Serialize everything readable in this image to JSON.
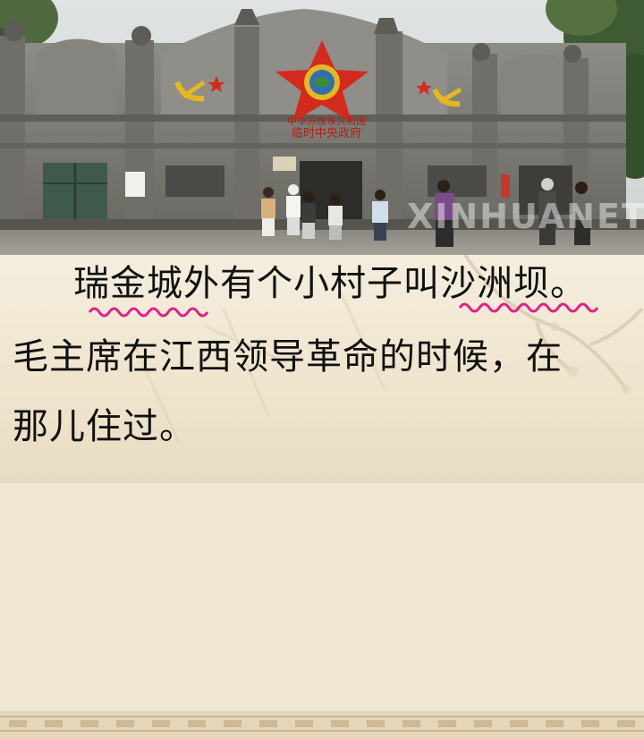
{
  "photo": {
    "gate_sign_line1": "中华苏维埃共和国",
    "gate_sign_line2": "临时中央政府",
    "watermark": "XINHUANET"
  },
  "text": {
    "line1": "瑞金城外有个小村子叫沙洲坝。",
    "line2": "毛主席在江西领导革命的时候，在",
    "line3": "那儿住过。"
  },
  "colors": {
    "wave_mark": "#e0218a",
    "text": "#111111",
    "star": "#d32a1e",
    "emblem": "#e5b822"
  }
}
